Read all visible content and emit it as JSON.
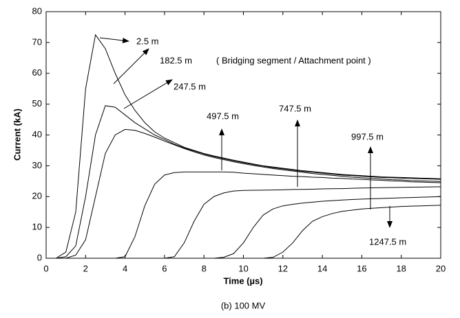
{
  "chart_data": {
    "type": "line",
    "title": "(b)  100 MV",
    "x_label": "Time (µs)",
    "y_label": "Current (kA)",
    "annotation": "( Bridging segment / Attachment point )",
    "xlim": [
      0,
      20
    ],
    "ylim": [
      0,
      80
    ],
    "xticks": [
      0,
      2,
      4,
      6,
      8,
      10,
      12,
      14,
      16,
      18,
      20
    ],
    "yticks": [
      0,
      10,
      20,
      30,
      40,
      50,
      60,
      70,
      80
    ],
    "grid": false,
    "x": [
      0,
      0.5,
      1,
      1.5,
      2,
      2.5,
      3,
      3.5,
      4,
      4.5,
      5,
      5.5,
      6,
      6.5,
      7,
      7.5,
      8,
      8.5,
      9,
      9.5,
      10,
      10.5,
      11,
      11.5,
      12,
      12.5,
      13,
      13.5,
      14,
      14.5,
      15,
      15.5,
      16,
      16.5,
      17,
      17.5,
      18,
      18.5,
      19,
      19.5,
      20
    ],
    "series": [
      {
        "name": "2.5 m",
        "color": "#000000",
        "values": [
          0,
          0,
          2,
          15,
          55,
          72.5,
          68,
          60,
          53,
          48,
          44,
          41,
          39,
          37.5,
          36,
          35,
          34,
          33.2,
          32.5,
          31.8,
          31.2,
          30.6,
          30,
          29.6,
          29.2,
          28.8,
          28.4,
          28.1,
          27.8,
          27.5,
          27.2,
          27,
          26.8,
          26.6,
          26.4,
          26.3,
          26.2,
          26.1,
          26,
          25.9,
          25.8
        ]
      },
      {
        "name": "182.5 m",
        "color": "#000000",
        "values": [
          0,
          0,
          0.5,
          4,
          20,
          40,
          49.5,
          49,
          46.5,
          44,
          42,
          40,
          38.5,
          37,
          35.8,
          34.8,
          33.8,
          33,
          32.3,
          31.6,
          31,
          30.4,
          29.9,
          29.4,
          29,
          28.6,
          28.2,
          27.9,
          27.6,
          27.3,
          27,
          26.8,
          26.6,
          26.4,
          26.2,
          26.1,
          26,
          25.9,
          25.8,
          25.7,
          25.6
        ]
      },
      {
        "name": "247.5 m",
        "color": "#000000",
        "values": [
          0,
          0,
          0,
          1,
          6,
          20,
          34,
          40,
          41.8,
          41.5,
          40.5,
          39.3,
          38,
          36.8,
          35.6,
          34.5,
          33.5,
          32.7,
          32,
          31.3,
          30.7,
          30.1,
          29.6,
          29.1,
          28.7,
          28.3,
          27.9,
          27.5,
          27.2,
          26.9,
          26.6,
          26.3,
          26.1,
          25.9,
          25.7,
          25.5,
          25.4,
          25.2,
          25.1,
          25,
          24.9
        ]
      },
      {
        "name": "497.5 m",
        "color": "#000000",
        "values": [
          0,
          0,
          0,
          0,
          0,
          0,
          0,
          0,
          0.5,
          7,
          17,
          24,
          27,
          27.8,
          28,
          28,
          28,
          28,
          28,
          27.9,
          27.6,
          27.4,
          27.2,
          27,
          26.8,
          26.6,
          26.5,
          26.3,
          26.2,
          26,
          25.9,
          25.7,
          25.6,
          25.4,
          25.3,
          25.1,
          25,
          24.8,
          24.7,
          24.6,
          24.5
        ]
      },
      {
        "name": "747.5 m",
        "color": "#000000",
        "values": [
          0,
          0,
          0,
          0,
          0,
          0,
          0,
          0,
          0,
          0,
          0,
          0,
          0,
          0.5,
          5,
          12,
          17.5,
          20,
          21.2,
          21.8,
          22,
          22.05,
          22.1,
          22.15,
          22.2,
          22.3,
          22.35,
          22.4,
          22.5,
          22.55,
          22.6,
          22.7,
          22.8,
          22.85,
          22.9,
          22.95,
          23,
          23.05,
          23.1,
          23.15,
          23.2
        ]
      },
      {
        "name": "997.5 m",
        "color": "#000000",
        "values": [
          0,
          0,
          0,
          0,
          0,
          0,
          0,
          0,
          0,
          0,
          0,
          0,
          0,
          0,
          0,
          0,
          0,
          0,
          0.3,
          1.5,
          5,
          10,
          14,
          16,
          17,
          17.5,
          17.9,
          18.2,
          18.5,
          18.7,
          18.9,
          19.05,
          19.2,
          19.3,
          19.4,
          19.5,
          19.6,
          19.7,
          19.8,
          19.9,
          20
        ]
      },
      {
        "name": "1247.5 m",
        "color": "#000000",
        "values": [
          0,
          0,
          0,
          0,
          0,
          0,
          0,
          0,
          0,
          0,
          0,
          0,
          0,
          0,
          0,
          0,
          0,
          0,
          0,
          0,
          0,
          0,
          0,
          0.3,
          2,
          5,
          9,
          12,
          13.5,
          14.5,
          15.2,
          15.6,
          16,
          16.2,
          16.4,
          16.6,
          16.8,
          16.9,
          17,
          17.1,
          17.2
        ]
      }
    ]
  }
}
